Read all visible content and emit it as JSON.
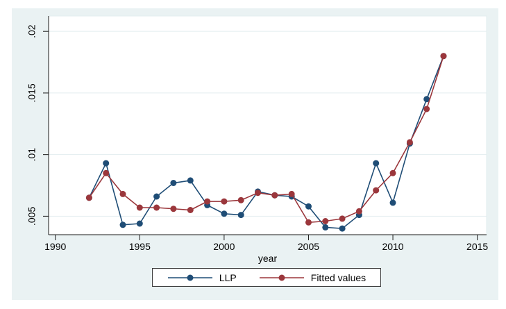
{
  "figure": {
    "background_color": "#eaf2f3",
    "plot_background_color": "#ffffff",
    "grid_color": "#e2edef",
    "axis_color": "#1a1a1a"
  },
  "chart_data": {
    "type": "line",
    "title": "",
    "xlabel": "year",
    "ylabel": "",
    "xlim": [
      1989.6,
      2015.55
    ],
    "ylim": [
      0.0035,
      0.02125
    ],
    "x_ticks": [
      "1990",
      "1995",
      "2000",
      "2005",
      "2010",
      "2015"
    ],
    "x_tick_values": [
      1990,
      1995,
      2000,
      2005,
      2010,
      2015
    ],
    "y_ticks": [
      ".005",
      ".01",
      ".015",
      ".02"
    ],
    "y_tick_values": [
      0.005,
      0.01,
      0.015,
      0.02
    ],
    "grid": true,
    "legend_position": "bottom-center",
    "x": [
      1992,
      1993,
      1994,
      1995,
      1996,
      1997,
      1998,
      1999,
      2000,
      2001,
      2002,
      2003,
      2004,
      2005,
      2006,
      2007,
      2008,
      2009,
      2010,
      2011,
      2012,
      2013
    ],
    "series": [
      {
        "name": "LLP",
        "color": "#1f4d76",
        "values": [
          0.0065,
          0.0093,
          0.0043,
          0.0044,
          0.0066,
          0.0077,
          0.0079,
          0.0059,
          0.0052,
          0.0051,
          0.007,
          0.0067,
          0.0066,
          0.0058,
          0.0041,
          0.004,
          0.0051,
          0.0093,
          0.0061,
          0.0109,
          0.0145,
          0.018
        ]
      },
      {
        "name": "Fitted values",
        "color": "#9b373c",
        "values": [
          0.0065,
          0.0085,
          0.0068,
          0.0057,
          0.0057,
          0.0056,
          0.0055,
          0.0062,
          0.0062,
          0.0063,
          0.0069,
          0.0067,
          0.0068,
          0.0045,
          0.0046,
          0.0048,
          0.0054,
          0.0071,
          0.0085,
          0.011,
          0.0137,
          0.018
        ]
      }
    ]
  },
  "legend": {
    "items": [
      {
        "label": "LLP"
      },
      {
        "label": "Fitted values"
      }
    ]
  }
}
